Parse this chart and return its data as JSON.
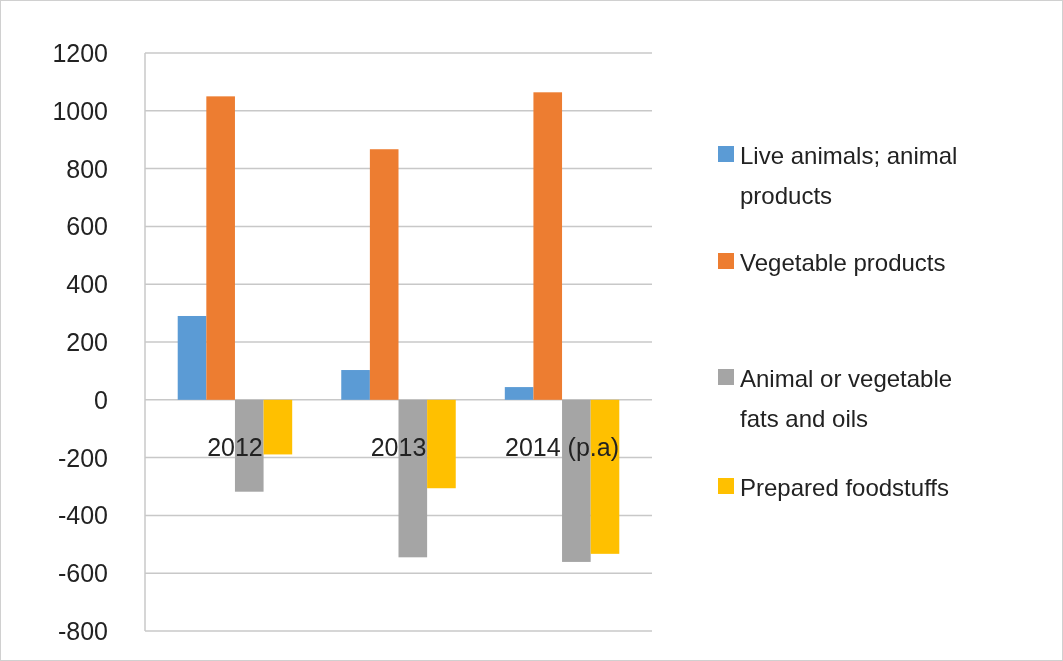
{
  "chart_data": {
    "type": "bar",
    "categories": [
      "2012",
      "2013",
      "2014 (p.a)"
    ],
    "series": [
      {
        "name": "Live animals; animal products",
        "color": "#5b9bd5",
        "values": [
          290,
          103,
          44
        ]
      },
      {
        "name": "Vegetable products",
        "color": "#ed7d31",
        "values": [
          1050,
          867,
          1064
        ]
      },
      {
        "name": "Animal or vegetable fats and oils",
        "color": "#a5a5a5",
        "values": [
          -318,
          -545,
          -561
        ]
      },
      {
        "name": "Prepared foodstuffs",
        "color": "#ffc000",
        "values": [
          -189,
          -306,
          -533
        ]
      }
    ],
    "ylim": [
      -800,
      1200
    ],
    "yticks": [
      -800,
      -600,
      -400,
      -200,
      0,
      200,
      400,
      600,
      800,
      1000,
      1200
    ],
    "grid": "y",
    "legend": "right"
  }
}
